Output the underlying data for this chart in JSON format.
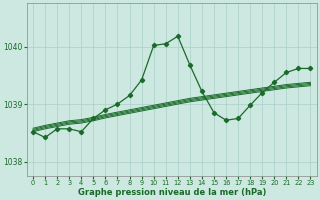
{
  "xlabel": "Graphe pression niveau de la mer (hPa)",
  "ylim": [
    1037.75,
    1040.75
  ],
  "xlim": [
    -0.5,
    23.5
  ],
  "yticks": [
    1038,
    1039,
    1040
  ],
  "xticks": [
    0,
    1,
    2,
    3,
    4,
    5,
    6,
    7,
    8,
    9,
    10,
    11,
    12,
    13,
    14,
    15,
    16,
    17,
    18,
    19,
    20,
    21,
    22,
    23
  ],
  "bg_color": "#cce8e0",
  "grid_color": "#aacfc8",
  "line_color": "#1a6b2a",
  "main_line": [
    1038.52,
    1038.42,
    1038.57,
    1038.57,
    1038.52,
    1038.75,
    1038.9,
    1039.0,
    1039.15,
    1039.42,
    1040.02,
    1040.05,
    1040.18,
    1039.68,
    1039.22,
    1038.85,
    1038.72,
    1038.75,
    1038.98,
    1039.2,
    1039.38,
    1039.55,
    1039.62,
    1039.62
  ],
  "band_line1": [
    1038.52,
    1038.57,
    1038.61,
    1038.65,
    1038.67,
    1038.71,
    1038.76,
    1038.8,
    1038.84,
    1038.88,
    1038.92,
    1038.96,
    1039.0,
    1039.04,
    1039.07,
    1039.1,
    1039.13,
    1039.16,
    1039.19,
    1039.22,
    1039.25,
    1039.28,
    1039.3,
    1039.32
  ],
  "band_line2": [
    1038.54,
    1038.59,
    1038.63,
    1038.67,
    1038.69,
    1038.73,
    1038.78,
    1038.82,
    1038.86,
    1038.9,
    1038.94,
    1038.98,
    1039.02,
    1039.06,
    1039.09,
    1039.12,
    1039.15,
    1039.18,
    1039.21,
    1039.24,
    1039.27,
    1039.3,
    1039.32,
    1039.34
  ],
  "band_line3": [
    1038.56,
    1038.61,
    1038.65,
    1038.69,
    1038.71,
    1038.75,
    1038.8,
    1038.84,
    1038.88,
    1038.92,
    1038.96,
    1039.0,
    1039.04,
    1039.08,
    1039.11,
    1039.14,
    1039.17,
    1039.2,
    1039.23,
    1039.26,
    1039.29,
    1039.32,
    1039.34,
    1039.36
  ],
  "band_line4": [
    1038.58,
    1038.63,
    1038.67,
    1038.71,
    1038.73,
    1038.77,
    1038.82,
    1038.86,
    1038.9,
    1038.94,
    1038.98,
    1039.02,
    1039.06,
    1039.1,
    1039.13,
    1039.16,
    1039.19,
    1039.22,
    1039.25,
    1039.28,
    1039.31,
    1039.34,
    1039.36,
    1039.38
  ]
}
